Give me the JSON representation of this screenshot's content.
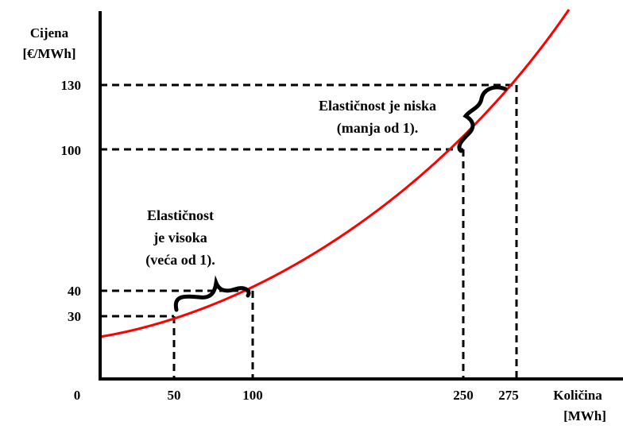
{
  "chart_data": {
    "type": "line",
    "ylabel": "Cijena",
    "ylabel_unit": "[€/MWh]",
    "xlabel": "Količina",
    "xlabel_unit": "[MWh]",
    "x_ticks": [
      "0",
      "50",
      "100",
      "250",
      "275"
    ],
    "y_ticks": [
      "30",
      "40",
      "100",
      "130"
    ],
    "curve_color": "#ff0000",
    "guide_style": "dashed",
    "series": [
      {
        "x": [
          0,
          50,
          100,
          150,
          200,
          250,
          275,
          310
        ],
        "y": [
          19,
          30,
          40,
          55,
          75,
          100,
          130,
          185
        ]
      }
    ],
    "highlighted_points": [
      {
        "x": 50,
        "y": 30
      },
      {
        "x": 100,
        "y": 40
      },
      {
        "x": 250,
        "y": 100
      },
      {
        "x": 275,
        "y": 130
      }
    ],
    "annotations": [
      {
        "lines": [
          "Elastičnost",
          "je visoka",
          "(veća od 1)."
        ]
      },
      {
        "lines": [
          "Elastičnost je niska",
          "(manja od 1)."
        ]
      }
    ]
  }
}
